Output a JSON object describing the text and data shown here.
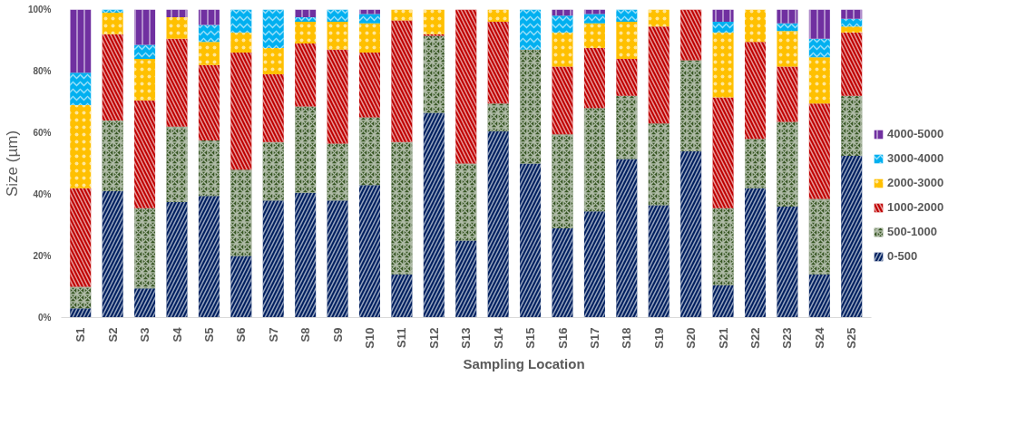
{
  "chart_data": {
    "type": "bar",
    "stacked": true,
    "xlabel": "Sampling Location",
    "ylabel": "Size (µm)",
    "categories": [
      "S1",
      "S2",
      "S3",
      "S4",
      "S5",
      "S6",
      "S7",
      "S8",
      "S9",
      "S10",
      "S11",
      "S12",
      "S13",
      "S14",
      "S15",
      "S16",
      "S17",
      "S18",
      "S19",
      "S20",
      "S21",
      "S22",
      "S23",
      "S24",
      "S25"
    ],
    "ylim": [
      0,
      100
    ],
    "yticks": [
      {
        "value": 0,
        "label": "0%"
      },
      {
        "value": 20,
        "label": "20%"
      },
      {
        "value": 40,
        "label": "40%"
      },
      {
        "value": 60,
        "label": "60%"
      },
      {
        "value": 80,
        "label": "80%"
      },
      {
        "value": 100,
        "label": "100%"
      }
    ],
    "grid": false,
    "legend": "right",
    "series": [
      {
        "name": "0-500",
        "color": "#002060",
        "values": [
          3,
          41,
          9.5,
          37.5,
          39.5,
          20,
          38,
          40.5,
          38,
          43,
          14,
          66.5,
          25,
          60.5,
          50,
          29,
          34.5,
          51.5,
          36.5,
          54,
          10.5,
          42,
          36,
          14,
          52.5
        ]
      },
      {
        "name": "500-1000",
        "color": "#375623",
        "values": [
          7,
          23,
          26,
          24.5,
          18,
          28,
          19,
          28,
          18.5,
          22,
          43,
          25,
          25,
          9,
          37,
          30.5,
          33.5,
          20.5,
          26.5,
          29.5,
          25,
          16,
          27.5,
          24.5,
          19.5
        ]
      },
      {
        "name": "1000-2000",
        "color": "#c00000",
        "values": [
          32,
          28,
          35,
          28.5,
          24.5,
          38,
          22,
          20.5,
          30.5,
          21,
          39.5,
          0.5,
          50,
          26.5,
          0,
          22,
          19.5,
          12,
          31.5,
          16.5,
          36,
          31.5,
          18,
          31,
          20.5
        ]
      },
      {
        "name": "2000-3000",
        "color": "#ffc000",
        "values": [
          27,
          7,
          13.5,
          7,
          7.5,
          6.5,
          8.5,
          7,
          9,
          9.5,
          3.5,
          8,
          0,
          4,
          0,
          11,
          8,
          12,
          5.5,
          0,
          21,
          10.5,
          11.5,
          15,
          2
        ]
      },
      {
        "name": "3000-4000",
        "color": "#00b0f0",
        "values": [
          10.5,
          1,
          4.5,
          0,
          5.5,
          7.5,
          12.5,
          1.5,
          4,
          3,
          0,
          0,
          0,
          0,
          13,
          5.5,
          3,
          4,
          0,
          0,
          3.5,
          0,
          2.5,
          6,
          2.5
        ]
      },
      {
        "name": "4000-5000",
        "color": "#7030a0",
        "values": [
          20.5,
          0,
          11.5,
          2.5,
          5,
          0,
          0,
          2.5,
          0,
          1.5,
          0,
          0,
          0,
          0,
          0,
          2,
          1.5,
          0,
          0,
          0,
          4,
          0,
          4.5,
          9.5,
          3
        ]
      }
    ]
  }
}
